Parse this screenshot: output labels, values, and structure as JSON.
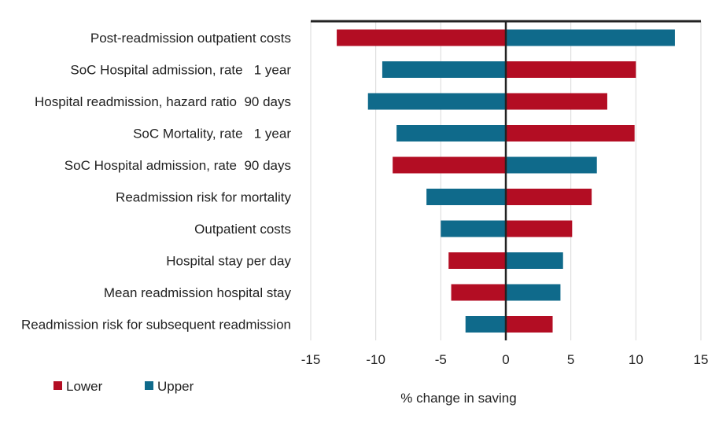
{
  "chart_data": {
    "type": "bar",
    "orientation": "horizontal",
    "subtype": "tornado",
    "categories": [
      "Post-readmission outpatient costs",
      "SoC Hospital admission, rate   1 year",
      "Hospital readmission, hazard ratio  90 days",
      "SoC Mortality, rate   1 year",
      "SoC Hospital admission, rate  90 days",
      "Readmission risk for mortality",
      "Outpatient costs",
      "Hospital stay per day",
      "Mean readmission hospital stay",
      "Readmission risk for subsequent readmission"
    ],
    "series": [
      {
        "name": "Lower",
        "color": "#b30d23",
        "values": [
          -13.0,
          10.0,
          7.8,
          9.9,
          -8.7,
          6.6,
          5.1,
          -4.4,
          -4.2,
          3.6
        ]
      },
      {
        "name": "Upper",
        "color": "#0f6a8b",
        "values": [
          13.0,
          -9.5,
          -10.6,
          -8.4,
          7.0,
          -6.1,
          -5.0,
          4.4,
          4.2,
          -3.1
        ]
      }
    ],
    "xlabel": "% change in saving",
    "ylabel": "",
    "xlim": [
      -15,
      15
    ],
    "xticks": [
      -15,
      -10,
      -5,
      0,
      5,
      10,
      15
    ],
    "grid": true,
    "legend": "bottom-left"
  }
}
